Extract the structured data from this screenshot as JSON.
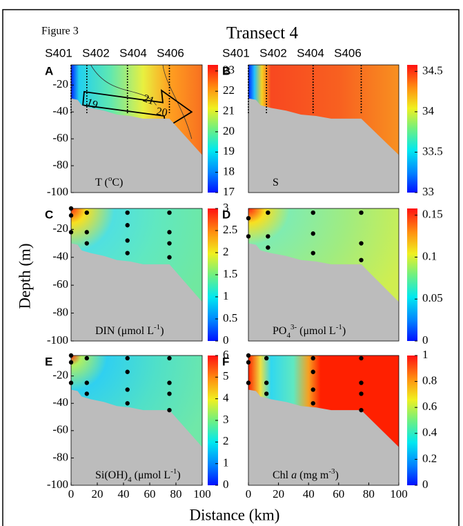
{
  "figure_label": "Figure 3",
  "title": "Transect 4",
  "ylabel": "Depth (m)",
  "xlabel": "Distance (km)",
  "chart_data": [
    {
      "type": "contour",
      "panel": "A",
      "label": [
        "T (",
        "o",
        "C)"
      ],
      "label_style": [
        "normal",
        "super",
        "normal"
      ],
      "stations": [
        "S401",
        "S402",
        "S404",
        "S406"
      ],
      "station_x": [
        0,
        12,
        43,
        75
      ],
      "annotations": [
        "19",
        "21",
        "20"
      ],
      "xlim": [
        0,
        100
      ],
      "ylim": [
        -100,
        -5
      ],
      "yticks": [
        -20,
        -40,
        -60,
        -80,
        -100
      ],
      "colorbar_lim": [
        17,
        23.3
      ],
      "colorbar_ticks": [
        17,
        18,
        19,
        20,
        21,
        22,
        23
      ]
    },
    {
      "type": "contour",
      "panel": "B",
      "label": [
        "S"
      ],
      "label_style": [
        "normal"
      ],
      "stations": [
        "S401",
        "S402",
        "S404",
        "S406"
      ],
      "station_x": [
        0,
        12,
        43,
        75
      ],
      "xlim": [
        0,
        100
      ],
      "ylim": [
        -100,
        -5
      ],
      "colorbar_lim": [
        33,
        34.58
      ],
      "colorbar_ticks": [
        33,
        33.5,
        34,
        34.5
      ]
    },
    {
      "type": "contour",
      "panel": "C",
      "label": [
        "DIN (",
        "μmol L",
        "-1",
        ")"
      ],
      "label_style": [
        "normal",
        "normal",
        "super",
        "normal"
      ],
      "xlim": [
        0,
        100
      ],
      "ylim": [
        -100,
        -5
      ],
      "yticks": [
        -20,
        -40,
        -60,
        -80,
        -100
      ],
      "colorbar_lim": [
        0,
        3
      ],
      "colorbar_ticks": [
        0,
        0.5,
        1,
        1.5,
        2,
        2.5,
        3
      ],
      "x": [
        0,
        0,
        0,
        12,
        12,
        12,
        43,
        43,
        43,
        43,
        75,
        75,
        75,
        75
      ],
      "y": [
        -5,
        -10,
        -22,
        -8,
        -22,
        -30,
        -8,
        -17,
        -28,
        -37,
        -8,
        -22,
        -30,
        -40
      ]
    },
    {
      "type": "contour",
      "panel": "D",
      "label": [
        "PO",
        "4",
        "3-",
        " (μmol L",
        "-1",
        ")"
      ],
      "label_style": [
        "normal",
        "sub",
        "super",
        "normal",
        "super",
        "normal"
      ],
      "xlim": [
        0,
        100
      ],
      "ylim": [
        -100,
        -5
      ],
      "colorbar_lim": [
        0,
        0.158
      ],
      "colorbar_ticks": [
        0,
        0.05,
        0.1,
        0.15
      ],
      "x": [
        0,
        0,
        13,
        13,
        13,
        43,
        43,
        43,
        75,
        75,
        75
      ],
      "y": [
        -12,
        -25,
        -8,
        -25,
        -33,
        -8,
        -23,
        -37,
        -8,
        -30,
        -42
      ]
    },
    {
      "type": "contour",
      "panel": "E",
      "label": [
        "Si(OH)",
        "4",
        " (μmol L",
        "-1",
        ")"
      ],
      "label_style": [
        "normal",
        "sub",
        "normal",
        "super",
        "normal"
      ],
      "xlim": [
        0,
        100
      ],
      "ylim": [
        -100,
        -5
      ],
      "xticks": [
        0,
        20,
        40,
        60,
        80,
        100
      ],
      "yticks": [
        -20,
        -40,
        -60,
        -80,
        -100
      ],
      "colorbar_lim": [
        0,
        6
      ],
      "colorbar_ticks": [
        0,
        1,
        2,
        3,
        4,
        5,
        6
      ],
      "x": [
        0,
        0,
        0,
        12,
        12,
        12,
        43,
        43,
        43,
        43,
        75,
        75,
        75,
        75
      ],
      "y": [
        -5,
        -10,
        -25,
        -7,
        -25,
        -33,
        -7,
        -17,
        -30,
        -40,
        -7,
        -25,
        -33,
        -45
      ]
    },
    {
      "type": "contour",
      "panel": "F",
      "label": [
        "Chl ",
        "a",
        " (mg m",
        "-3",
        ")"
      ],
      "label_style": [
        "normal",
        "italic",
        "normal",
        "super",
        "normal"
      ],
      "xlim": [
        0,
        100
      ],
      "ylim": [
        -100,
        -5
      ],
      "xticks": [
        0,
        20,
        40,
        60,
        80,
        100
      ],
      "colorbar_lim": [
        0,
        1
      ],
      "colorbar_ticks": [
        0,
        0.2,
        0.4,
        0.6,
        0.8,
        1
      ],
      "x": [
        0,
        0,
        0,
        12,
        12,
        12,
        43,
        43,
        43,
        43,
        75,
        75,
        75,
        75
      ],
      "y": [
        -5,
        -10,
        -25,
        -7,
        -25,
        -33,
        -7,
        -17,
        -30,
        -40,
        -7,
        -25,
        -33,
        -45
      ]
    }
  ]
}
